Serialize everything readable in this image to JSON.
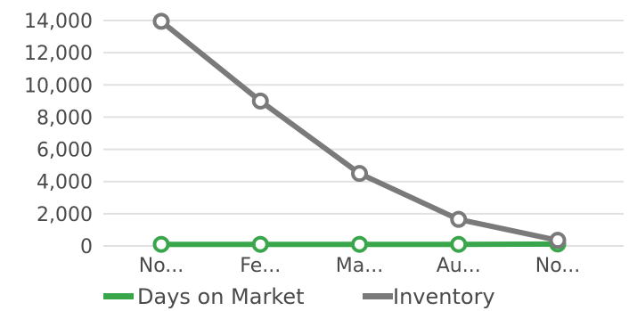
{
  "chart_data": {
    "type": "line",
    "title": "",
    "xlabel": "",
    "ylabel": "",
    "categories": [
      "No...",
      "Fe...",
      "Ma...",
      "Au...",
      "No..."
    ],
    "ylim": [
      0,
      14000
    ],
    "y_ticks": [
      0,
      2000,
      4000,
      6000,
      8000,
      10000,
      12000,
      14000
    ],
    "y_tick_labels": [
      "0",
      "2,000",
      "4,000",
      "6,000",
      "8,000",
      "10,000",
      "12,000",
      "14,000"
    ],
    "grid": true,
    "legend_position": "bottom",
    "series": [
      {
        "name": "Days on Market",
        "color": "#3aa64c",
        "values": [
          100,
          100,
          100,
          100,
          120
        ]
      },
      {
        "name": "Inventory",
        "color": "#7a7a7a",
        "values": [
          13950,
          9000,
          4500,
          1650,
          350
        ]
      }
    ]
  }
}
